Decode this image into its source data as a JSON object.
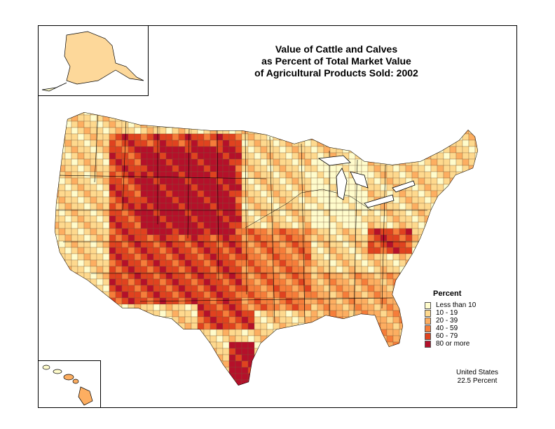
{
  "title": {
    "line1": "Value of Cattle and Calves",
    "line2": "as Percent of Total Market Value",
    "line3": "of Agricultural Products Sold:  2002"
  },
  "legend": {
    "title": "Percent",
    "items": [
      {
        "label": "Less than 10",
        "color": "#fffccc"
      },
      {
        "label": "10 - 19",
        "color": "#fed98e"
      },
      {
        "label": "20 - 39",
        "color": "#fdae61"
      },
      {
        "label": "40 - 59",
        "color": "#f67d3a"
      },
      {
        "label": "60 - 79",
        "color": "#e0421f"
      },
      {
        "label": "80 or more",
        "color": "#b5102a"
      }
    ]
  },
  "summary": {
    "line1": "United States",
    "line2": "22.5 Percent"
  },
  "colors": {
    "border": "#000000",
    "county_line": "#7a5a3a",
    "background": "#ffffff"
  }
}
